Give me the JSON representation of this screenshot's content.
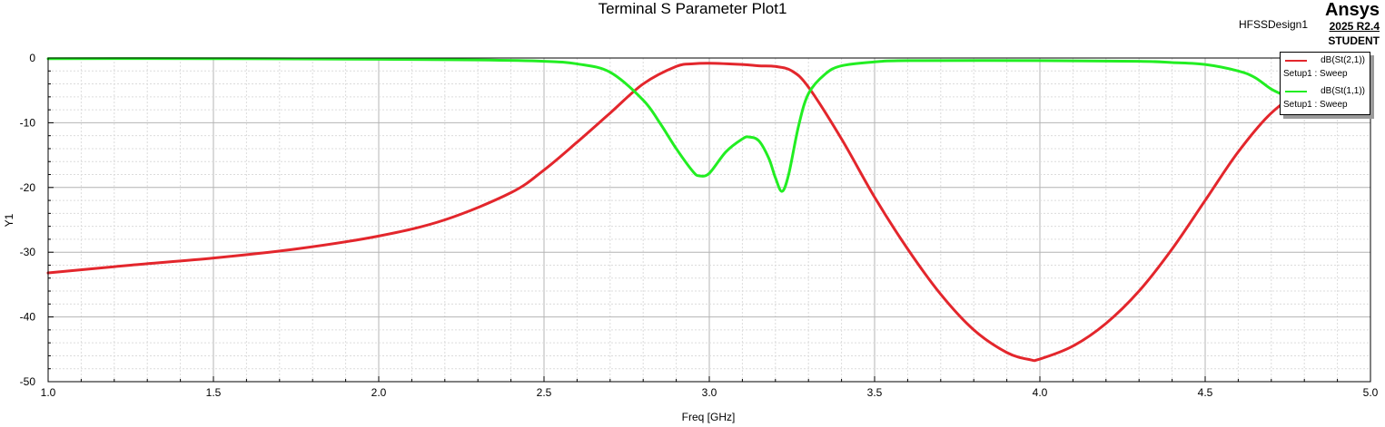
{
  "header": {
    "title": "Terminal S Parameter Plot1",
    "design": "HFSSDesign1",
    "brand": "Ansys",
    "version": "2025 R2.4",
    "license": "STUDENT"
  },
  "chart_data": {
    "type": "line",
    "title": "Terminal S Parameter Plot1",
    "xlabel": "Freq [GHz]",
    "ylabel": "Y1",
    "xlim": [
      1.0,
      5.0
    ],
    "ylim": [
      -50,
      0
    ],
    "xticks": [
      "1.0",
      "1.5",
      "2.0",
      "2.5",
      "3.0",
      "3.5",
      "4.0",
      "4.5",
      "5.0"
    ],
    "yticks": [
      "0",
      "-10",
      "-20",
      "-30",
      "-40",
      "-50"
    ],
    "grid": true,
    "legend_position": "top-right",
    "series": [
      {
        "name": "dB(St(2,1))",
        "source": "Setup1 : Sweep",
        "color": "#e3262c",
        "x": [
          1.0,
          1.25,
          1.5,
          1.75,
          2.0,
          2.2,
          2.4,
          2.5,
          2.6,
          2.7,
          2.8,
          2.9,
          2.95,
          3.0,
          3.1,
          3.15,
          3.2,
          3.25,
          3.3,
          3.4,
          3.5,
          3.6,
          3.7,
          3.8,
          3.9,
          3.97,
          4.0,
          4.1,
          4.2,
          4.3,
          4.4,
          4.5,
          4.6,
          4.7,
          4.8,
          4.9,
          5.0
        ],
        "y": [
          -33.2,
          -32.0,
          -30.9,
          -29.5,
          -27.5,
          -25.0,
          -20.8,
          -17.3,
          -13.0,
          -8.5,
          -4.0,
          -1.3,
          -0.9,
          -0.8,
          -1.0,
          -1.2,
          -1.3,
          -2.0,
          -4.5,
          -12.5,
          -21.5,
          -29.5,
          -36.5,
          -42.0,
          -45.5,
          -46.6,
          -46.5,
          -44.5,
          -41.0,
          -36.0,
          -29.5,
          -22.0,
          -14.5,
          -8.5,
          -5.0,
          -3.8,
          -3.3
        ]
      },
      {
        "name": "dB(St(1,1))",
        "source": "Setup1 : Sweep",
        "color": "#22ee22",
        "x": [
          1.0,
          1.5,
          2.0,
          2.3,
          2.5,
          2.6,
          2.7,
          2.8,
          2.85,
          2.9,
          2.95,
          2.97,
          3.0,
          3.05,
          3.1,
          3.12,
          3.15,
          3.18,
          3.2,
          3.22,
          3.24,
          3.27,
          3.3,
          3.35,
          3.4,
          3.5,
          3.6,
          4.0,
          4.3,
          4.4,
          4.5,
          4.6,
          4.65,
          4.7,
          4.75
        ],
        "y": [
          -0.1,
          -0.1,
          -0.2,
          -0.3,
          -0.5,
          -0.9,
          -2.2,
          -6.5,
          -10.0,
          -14.0,
          -17.5,
          -18.2,
          -17.8,
          -14.5,
          -12.5,
          -12.2,
          -12.8,
          -15.5,
          -18.5,
          -20.6,
          -18.0,
          -10.5,
          -5.5,
          -2.5,
          -1.2,
          -0.6,
          -0.4,
          -0.4,
          -0.5,
          -0.7,
          -1.0,
          -2.0,
          -3.0,
          -4.8,
          -6.0
        ]
      }
    ]
  }
}
